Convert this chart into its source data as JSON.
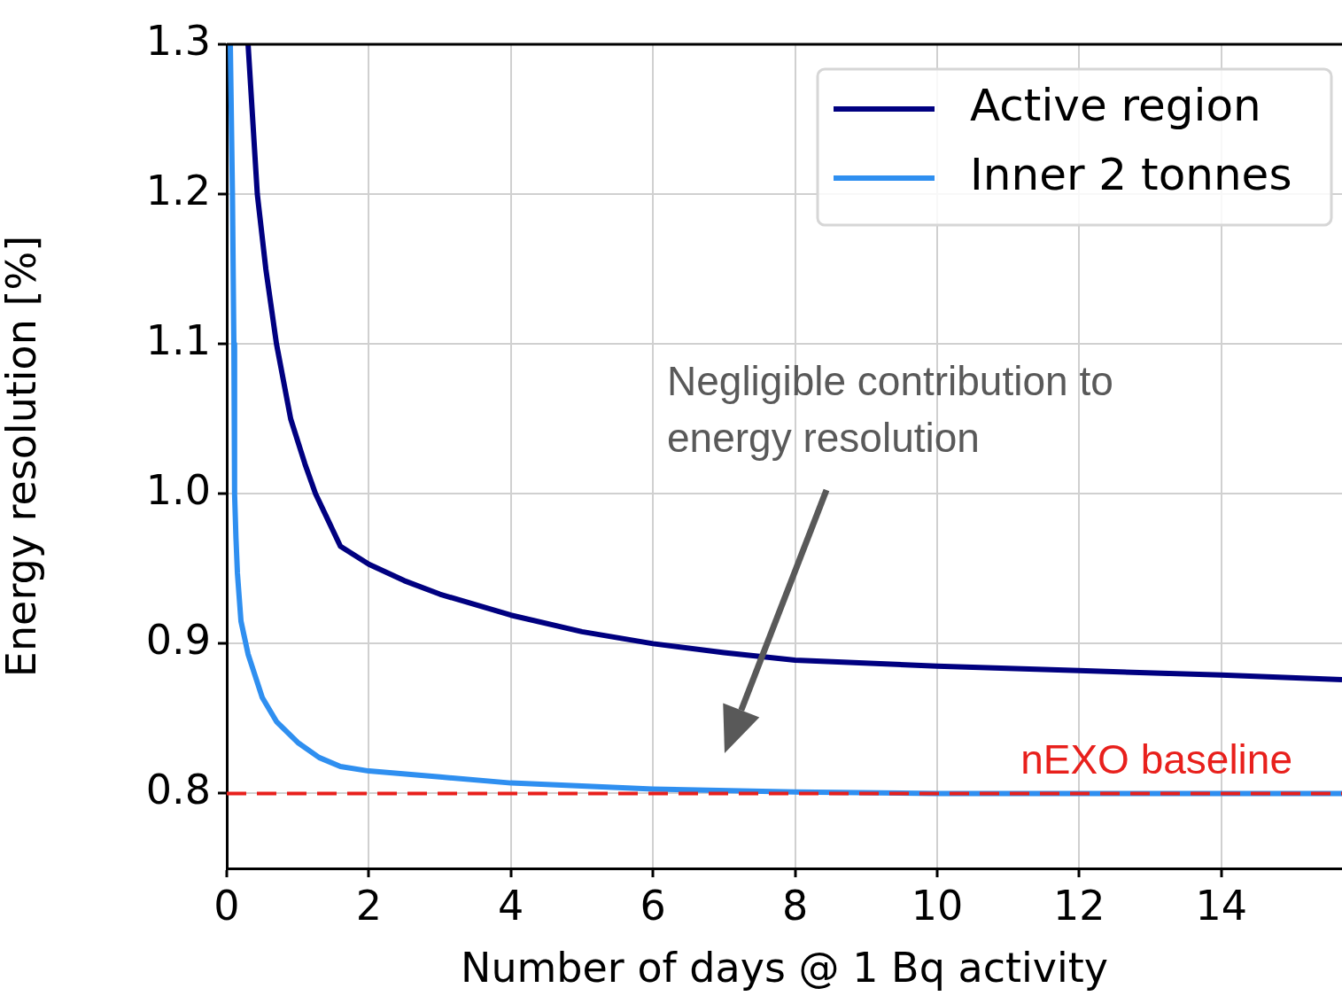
{
  "chart_data": {
    "type": "line",
    "xlabel": "Number of days @ 1 Bq activity",
    "ylabel": "Energy resolution [%]",
    "xlim": [
      0,
      15.7
    ],
    "ylim": [
      0.75,
      1.3
    ],
    "xticks": [
      0,
      2,
      4,
      6,
      8,
      10,
      12,
      14
    ],
    "yticks": [
      0.8,
      0.9,
      {
        "value": 1.0,
        "label": "1.0"
      },
      1.1,
      1.2,
      1.3
    ],
    "grid": true,
    "legend": "top right",
    "marker": "none",
    "line_style": "solid",
    "series": [
      {
        "name": "Active region",
        "color": "#000080",
        "x": [
          0.3,
          0.43,
          0.55,
          0.7,
          0.9,
          1.1,
          1.25,
          1.4,
          1.6,
          2,
          2.5,
          3,
          4,
          5,
          6,
          7,
          8,
          10,
          12,
          14,
          15.7
        ],
        "values": [
          1.3,
          1.2,
          1.15,
          1.1,
          1.05,
          1.02,
          1.0,
          0.985,
          0.965,
          0.953,
          0.942,
          0.933,
          0.919,
          0.908,
          0.9,
          0.894,
          0.889,
          0.885,
          0.882,
          0.879,
          0.876
        ]
      },
      {
        "name": "Inner 2 tonnes",
        "color": "#2f8ff0",
        "x": [
          0.05,
          0.08,
          0.1,
          0.11,
          0.13,
          0.15,
          0.2,
          0.3,
          0.5,
          0.7,
          1,
          1.3,
          1.6,
          2,
          3,
          4,
          6,
          8,
          10,
          15.7
        ],
        "values": [
          1.3,
          1.2,
          1.1,
          1.0,
          0.97,
          0.947,
          0.915,
          0.893,
          0.864,
          0.848,
          0.834,
          0.824,
          0.818,
          0.815,
          0.811,
          0.807,
          0.803,
          0.801,
          0.8,
          0.8
        ]
      }
    ],
    "ref_lines": [
      {
        "axis": "y",
        "value": 0.8,
        "label": "nEXO baseline",
        "color": "#e8201c",
        "line_style": "dashed"
      }
    ],
    "annotations": [
      "Negligible contribution to\nenergy resolution"
    ]
  }
}
